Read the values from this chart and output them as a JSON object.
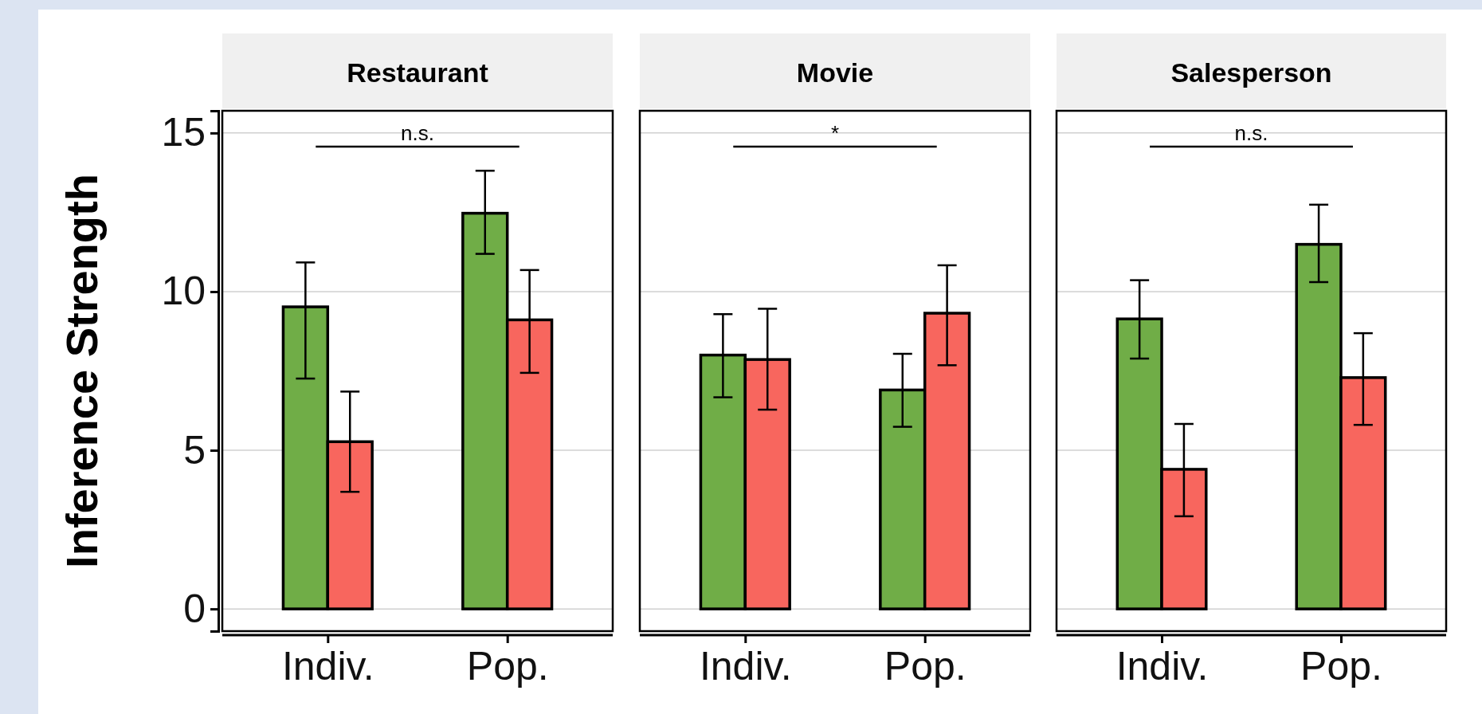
{
  "chart_data": [
    {
      "type": "bar",
      "title": "Restaurant",
      "ylabel": "Inference Strength",
      "categories": [
        "Indiv.",
        "Pop."
      ],
      "ylim": [
        -0.7,
        15.7
      ],
      "yticks": [
        0,
        5,
        10,
        15
      ],
      "grid": "y",
      "annotations": [
        "n.s."
      ],
      "series": [
        {
          "color": "#70ad47",
          "values": [
            9.52,
            12.47
          ],
          "errors": [
            [
              7.26,
              10.92
            ],
            [
              11.19,
              13.81
            ]
          ]
        },
        {
          "color": "#f8665e",
          "values": [
            5.27,
            9.11
          ],
          "errors": [
            [
              3.69,
              6.85
            ],
            [
              7.44,
              10.68
            ]
          ]
        }
      ]
    },
    {
      "type": "bar",
      "title": "Movie",
      "categories": [
        "Indiv.",
        "Pop."
      ],
      "ylim": [
        -0.7,
        15.7
      ],
      "yticks": [
        0,
        5,
        10,
        15
      ],
      "grid": "y",
      "tick_labels": "x",
      "annotations": [
        "*"
      ],
      "series": [
        {
          "color": "#70ad47",
          "values": [
            8.0,
            6.9
          ],
          "errors": [
            [
              6.67,
              9.29
            ],
            [
              5.74,
              8.04
            ]
          ]
        },
        {
          "color": "#f8665e",
          "values": [
            7.86,
            9.32
          ],
          "errors": [
            [
              6.28,
              9.46
            ],
            [
              7.68,
              10.83
            ]
          ]
        }
      ]
    },
    {
      "type": "bar",
      "title": "Salesperson",
      "categories": [
        "Indiv.",
        "Pop."
      ],
      "ylim": [
        -0.7,
        15.7
      ],
      "yticks": [
        0,
        5,
        10,
        15
      ],
      "grid": "y",
      "tick_labels": "x",
      "annotations": [
        "n.s."
      ],
      "series": [
        {
          "color": "#70ad47",
          "values": [
            9.14,
            11.49
          ],
          "errors": [
            [
              7.89,
              10.36
            ],
            [
              10.3,
              12.74
            ]
          ]
        },
        {
          "color": "#f8665e",
          "values": [
            4.4,
            7.29
          ],
          "errors": [
            [
              2.92,
              5.83
            ],
            [
              5.8,
              8.69
            ]
          ]
        }
      ]
    }
  ]
}
